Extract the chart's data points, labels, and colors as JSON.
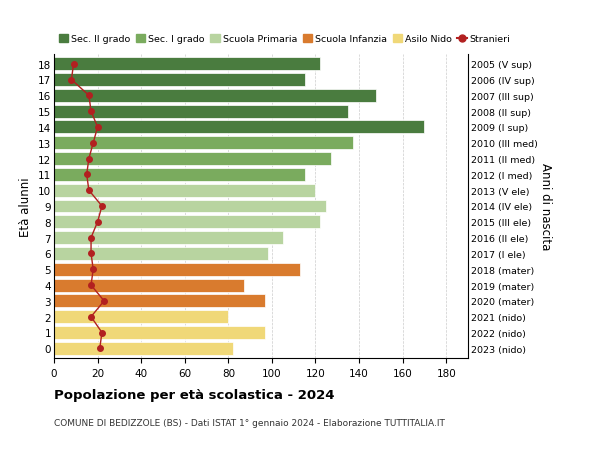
{
  "ages": [
    18,
    17,
    16,
    15,
    14,
    13,
    12,
    11,
    10,
    9,
    8,
    7,
    6,
    5,
    4,
    3,
    2,
    1,
    0
  ],
  "bar_values": [
    122,
    115,
    148,
    135,
    170,
    137,
    127,
    115,
    120,
    125,
    122,
    105,
    98,
    113,
    87,
    97,
    80,
    97,
    82
  ],
  "stranieri_values": [
    9,
    8,
    16,
    17,
    20,
    18,
    16,
    15,
    16,
    22,
    20,
    17,
    17,
    18,
    17,
    23,
    17,
    22,
    21
  ],
  "bar_colors": [
    "#4a7c3f",
    "#4a7c3f",
    "#4a7c3f",
    "#4a7c3f",
    "#4a7c3f",
    "#7aab5e",
    "#7aab5e",
    "#7aab5e",
    "#b8d4a0",
    "#b8d4a0",
    "#b8d4a0",
    "#b8d4a0",
    "#b8d4a0",
    "#d97b2e",
    "#d97b2e",
    "#d97b2e",
    "#f0d878",
    "#f0d878",
    "#f0d878"
  ],
  "right_labels": [
    "2005 (V sup)",
    "2006 (IV sup)",
    "2007 (III sup)",
    "2008 (II sup)",
    "2009 (I sup)",
    "2010 (III med)",
    "2011 (II med)",
    "2012 (I med)",
    "2013 (V ele)",
    "2014 (IV ele)",
    "2015 (III ele)",
    "2016 (II ele)",
    "2017 (I ele)",
    "2018 (mater)",
    "2019 (mater)",
    "2020 (mater)",
    "2021 (nido)",
    "2022 (nido)",
    "2023 (nido)"
  ],
  "xlim": [
    0,
    190
  ],
  "xticks": [
    0,
    20,
    40,
    60,
    80,
    100,
    120,
    140,
    160,
    180
  ],
  "title": "Popolazione per età scolastica - 2024",
  "subtitle": "COMUNE DI BEDIZZOLE (BS) - Dati ISTAT 1° gennaio 2024 - Elaborazione TUTTITALIA.IT",
  "ylabel": "Età alunni",
  "right_ylabel": "Anni di nascita",
  "legend_items": [
    {
      "label": "Sec. II grado",
      "color": "#4a7c3f"
    },
    {
      "label": "Sec. I grado",
      "color": "#7aab5e"
    },
    {
      "label": "Scuola Primaria",
      "color": "#b8d4a0"
    },
    {
      "label": "Scuola Infanzia",
      "color": "#d97b2e"
    },
    {
      "label": "Asilo Nido",
      "color": "#f0d878"
    },
    {
      "label": "Stranieri",
      "color": "#b22020"
    }
  ],
  "stranieri_line_color": "#b22020",
  "background_color": "#ffffff",
  "grid_color": "#cccccc"
}
